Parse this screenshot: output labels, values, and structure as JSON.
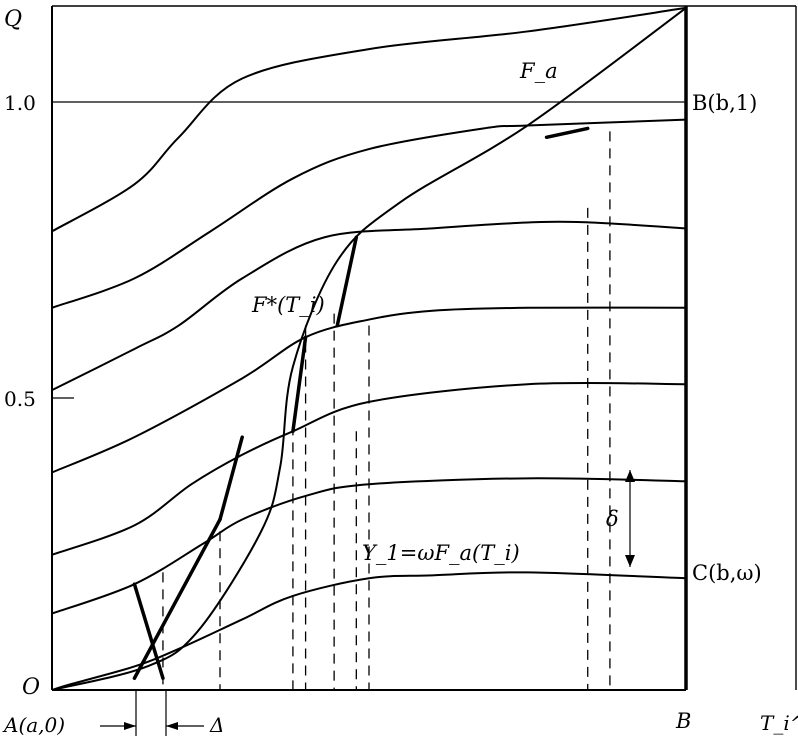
{
  "chart_data": {
    "type": "line",
    "title": "",
    "xlabel": "T_i^a",
    "ylabel": "Q",
    "xlim": [
      0,
      1
    ],
    "ylim": [
      0,
      1.1
    ],
    "y_ticks": [
      "1.0",
      "0.5"
    ],
    "origin_label": "O",
    "curve_labels": {
      "fa": "F_a",
      "fstar": "F*(T_i)",
      "y1": "Y_1=ωF_a(T_i)"
    },
    "point_labels": {
      "b1": "B(b,1)",
      "comega": "C(b,ω)",
      "a0": "A(a,0)",
      "delta": "Δ",
      "delta_gap": "δ",
      "b_axis": "B"
    },
    "series": [
      {
        "x": [
          0,
          0.13,
          0.2,
          0.3,
          0.5,
          0.75,
          1.0
        ],
        "y": [
          0.78,
          0.86,
          0.94,
          1.04,
          1.09,
          1.12,
          1.16
        ]
      },
      {
        "x": [
          0,
          0.13,
          0.25,
          0.38,
          0.5,
          0.68,
          0.75,
          1.0
        ],
        "y": [
          0.65,
          0.7,
          0.78,
          0.87,
          0.92,
          0.955,
          0.96,
          0.97
        ]
      },
      {
        "x": [
          0,
          0.13,
          0.2,
          0.3,
          0.43,
          0.6,
          0.75,
          0.85,
          1.0
        ],
        "y": [
          0.51,
          0.58,
          0.62,
          0.7,
          0.77,
          0.785,
          0.795,
          0.795,
          0.785
        ]
      },
      {
        "x": [
          0,
          0.13,
          0.3,
          0.4,
          0.5,
          0.6,
          0.75,
          1.0
        ],
        "y": [
          0.37,
          0.43,
          0.53,
          0.6,
          0.63,
          0.645,
          0.65,
          0.65
        ]
      },
      {
        "x": [
          0,
          0.13,
          0.22,
          0.3,
          0.38,
          0.5,
          0.75,
          1.0
        ],
        "y": [
          0.23,
          0.28,
          0.35,
          0.4,
          0.44,
          0.49,
          0.52,
          0.52
        ]
      },
      {
        "x": [
          0,
          0.13,
          0.24,
          0.3,
          0.4,
          0.5,
          0.75,
          1.0
        ],
        "y": [
          0.13,
          0.18,
          0.25,
          0.29,
          0.33,
          0.35,
          0.36,
          0.355
        ]
      },
      {
        "x": [
          0,
          0.03,
          0.13,
          0.2,
          0.3,
          0.38,
          0.5,
          0.6,
          0.75,
          1.0
        ],
        "y": [
          0,
          0.01,
          0.04,
          0.07,
          0.12,
          0.16,
          0.19,
          0.195,
          0.2,
          0.19
        ]
      },
      {
        "x": [
          0,
          0.15,
          0.23,
          0.33,
          0.36,
          0.38,
          0.45,
          0.55,
          0.75,
          1.0
        ],
        "y": [
          0,
          0.04,
          0.1,
          0.27,
          0.38,
          0.55,
          0.73,
          0.83,
          0.96,
          1.16
        ]
      }
    ],
    "thick_steps": [
      [
        [
          0.13,
          0.18
        ],
        [
          0.175,
          0.02
        ]
      ],
      [
        [
          0.3,
          0.43
        ],
        [
          0.265,
          0.29
        ]
      ],
      [
        [
          0.4,
          0.6
        ],
        [
          0.38,
          0.44
        ]
      ],
      [
        [
          0.48,
          0.77
        ],
        [
          0.45,
          0.62
        ]
      ],
      [
        [
          0.78,
          0.94
        ],
        [
          0.845,
          0.955
        ]
      ],
      [
        [
          0.265,
          0.29
        ],
        [
          0.13,
          0.02
        ]
      ]
    ],
    "dashed_x": [
      0.175,
      0.265,
      0.38,
      0.4,
      0.445,
      0.48,
      0.5,
      0.845,
      0.88
    ]
  }
}
